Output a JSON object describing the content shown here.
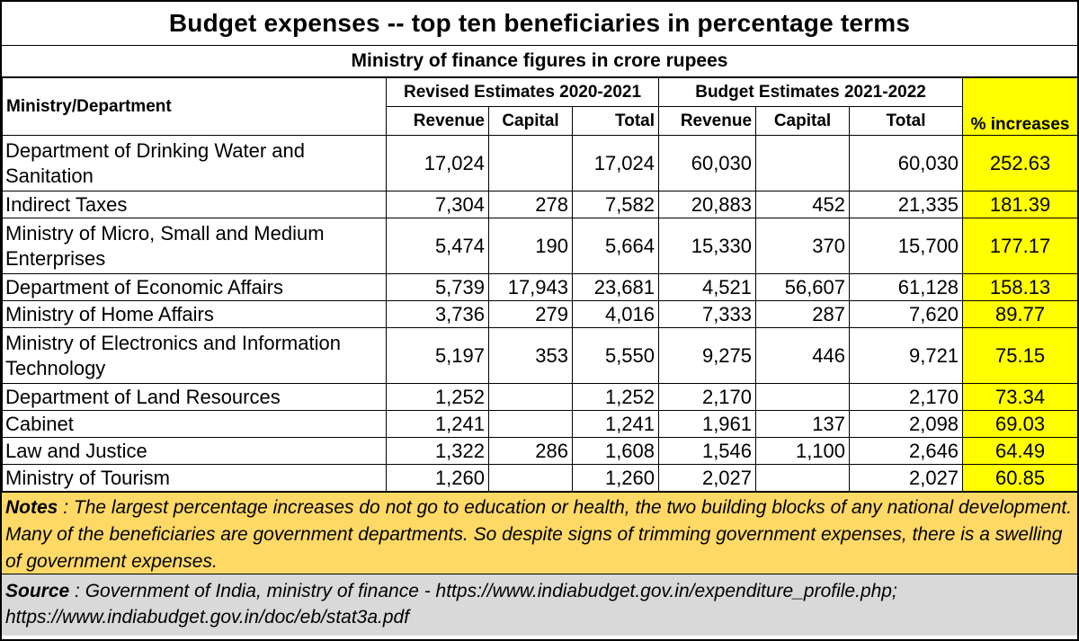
{
  "title": "Budget expenses -- top ten beneficiaries in percentage terms",
  "subtitle": "Ministry of finance figures in crore rupees",
  "headers": {
    "ministry": "Ministry/Department",
    "group_revised": "Revised Estimates 2020-2021",
    "group_budget": "Budget Estimates 2021-2022",
    "revenue": "Revenue",
    "capital": "Capital",
    "total": "Total",
    "pct": "% increases"
  },
  "rows": [
    {
      "name": "Department of Drinking Water and Sanitation",
      "re_rev": "17,024",
      "re_cap": "",
      "re_tot": "17,024",
      "be_rev": "60,030",
      "be_cap": "",
      "be_tot": "60,030",
      "pct": "252.63"
    },
    {
      "name": "Indirect Taxes",
      "re_rev": "7,304",
      "re_cap": "278",
      "re_tot": "7,582",
      "be_rev": "20,883",
      "be_cap": "452",
      "be_tot": "21,335",
      "pct": "181.39"
    },
    {
      "name": "Ministry of Micro, Small and Medium Enterprises",
      "re_rev": "5,474",
      "re_cap": "190",
      "re_tot": "5,664",
      "be_rev": "15,330",
      "be_cap": "370",
      "be_tot": "15,700",
      "pct": "177.17"
    },
    {
      "name": "Department of Economic Affairs",
      "re_rev": "5,739",
      "re_cap": "17,943",
      "re_tot": "23,681",
      "be_rev": "4,521",
      "be_cap": "56,607",
      "be_tot": "61,128",
      "pct": "158.13"
    },
    {
      "name": "Ministry of Home Affairs",
      "re_rev": "3,736",
      "re_cap": "279",
      "re_tot": "4,016",
      "be_rev": "7,333",
      "be_cap": "287",
      "be_tot": "7,620",
      "pct": "89.77"
    },
    {
      "name": "Ministry of Electronics and Information Technology",
      "re_rev": "5,197",
      "re_cap": "353",
      "re_tot": "5,550",
      "be_rev": "9,275",
      "be_cap": "446",
      "be_tot": "9,721",
      "pct": "75.15"
    },
    {
      "name": "Department of Land Resources",
      "re_rev": "1,252",
      "re_cap": "",
      "re_tot": "1,252",
      "be_rev": "2,170",
      "be_cap": "",
      "be_tot": "2,170",
      "pct": "73.34"
    },
    {
      "name": "Cabinet",
      "re_rev": "1,241",
      "re_cap": "",
      "re_tot": "1,241",
      "be_rev": "1,961",
      "be_cap": "137",
      "be_tot": "2,098",
      "pct": "69.03"
    },
    {
      "name": "Law and Justice",
      "re_rev": "1,322",
      "re_cap": "286",
      "re_tot": "1,608",
      "be_rev": "1,546",
      "be_cap": "1,100",
      "be_tot": "2,646",
      "pct": "64.49"
    },
    {
      "name": "Ministry of Tourism",
      "re_rev": "1,260",
      "re_cap": "",
      "re_tot": "1,260",
      "be_rev": "2,027",
      "be_cap": "",
      "be_tot": "2,027",
      "pct": "60.85"
    }
  ],
  "notes": {
    "label": "Notes",
    "text": " : The largest percentage increases do not go to education or health, the two building blocks of any national development. Many of the beneficiaries are government departments.  So despite signs of trimming government expenses, there is a swelling of government expenses."
  },
  "source": {
    "label": "Source",
    "text": " : Government of India, ministry of finance -  https://www.indiabudget.gov.in/expenditure_profile.php; https://www.indiabudget.gov.in/doc/eb/stat3a.pdf"
  },
  "colors": {
    "highlight": "#ffff00",
    "notes_bg": "#ffd966",
    "source_bg": "#d9d9d9"
  }
}
